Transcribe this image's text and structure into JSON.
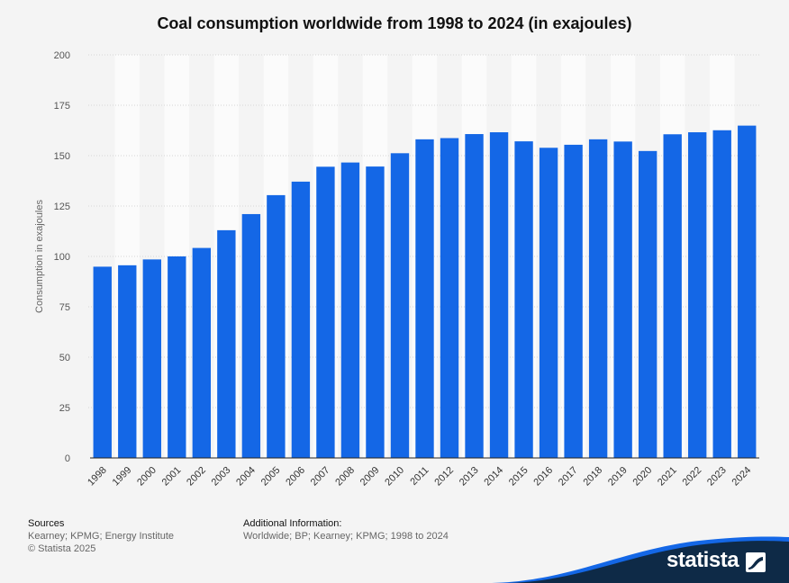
{
  "chart_data": {
    "type": "bar",
    "title": "Coal consumption worldwide from 1998 to 2024 (in exajoules)",
    "xlabel": "",
    "ylabel": "Consumption in exajoules",
    "ylim": [
      0,
      200
    ],
    "yticks": [
      0,
      25,
      50,
      75,
      100,
      125,
      150,
      175,
      200
    ],
    "grid": true,
    "categories": [
      "1998",
      "1999",
      "2000",
      "2001",
      "2002",
      "2003",
      "2004",
      "2005",
      "2006",
      "2007",
      "2008",
      "2009",
      "2010",
      "2011",
      "2012",
      "2013",
      "2014",
      "2015",
      "2016",
      "2017",
      "2018",
      "2019",
      "2020",
      "2021",
      "2022",
      "2023",
      "2024"
    ],
    "values": [
      94.9,
      95.6,
      98.5,
      100.0,
      104.2,
      113.0,
      121.0,
      130.4,
      137.1,
      144.5,
      146.6,
      144.6,
      151.2,
      158.1,
      158.7,
      160.7,
      161.6,
      157.1,
      153.9,
      155.4,
      158.1,
      157.0,
      152.3,
      160.6,
      161.6,
      162.6,
      164.9
    ],
    "bar_color": "#1467e6"
  },
  "footer": {
    "sources_heading": "Sources",
    "sources_text": "Kearney; KPMG; Energy Institute",
    "copyright": "© Statista 2025",
    "additional_heading": "Additional Information:",
    "additional_text": "Worldwide; BP; Kearney; KPMG; 1998 to 2024"
  },
  "brand": {
    "logo_text": "statista",
    "logo_icon": "statista-mark-icon",
    "wave_color": "#0e2a47",
    "accent_color": "#1467e6"
  }
}
